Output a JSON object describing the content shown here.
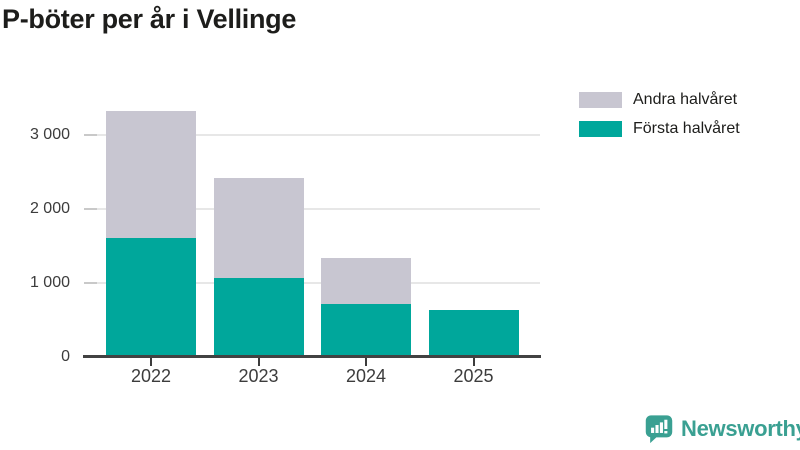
{
  "title": "P-böter per år i Vellinge",
  "legend": {
    "items": [
      {
        "label": "Andra halvåret",
        "color": "#c8c6d1"
      },
      {
        "label": "Första halvåret",
        "color": "#00a79b"
      }
    ]
  },
  "chart_data": {
    "type": "bar",
    "stacked": true,
    "title": "P-böter per år i Vellinge",
    "categories": [
      "2022",
      "2023",
      "2024",
      "2025"
    ],
    "series": [
      {
        "name": "Första halvåret",
        "color": "#00a79b",
        "values": [
          1610,
          1065,
          710,
          635
        ]
      },
      {
        "name": "Andra halvåret",
        "color": "#c8c6d1",
        "values": [
          1720,
          1350,
          630,
          0
        ]
      }
    ],
    "xlabel": "",
    "ylabel": "",
    "ylim": [
      0,
      3570
    ],
    "yticks": [
      0,
      1000,
      2000,
      3000
    ],
    "ytick_labels": [
      "0",
      "1 000",
      "2 000",
      "3 000"
    ],
    "grid": true,
    "legend_position": "top-right"
  },
  "branding": {
    "wordmark": "Newsworthy",
    "logo_icon": "bar-chart-speech-bubble-icon",
    "brand_color": "#3aa092"
  },
  "colors": {
    "first_half": "#00a79b",
    "second_half": "#c8c6d1",
    "title_text": "#1d1d1b",
    "axis_text": "#3c3c3c",
    "axis_line": "#424242",
    "gridline": "#e7e7e7",
    "ytick": "#c9c9c9",
    "background": "#ffffff"
  }
}
